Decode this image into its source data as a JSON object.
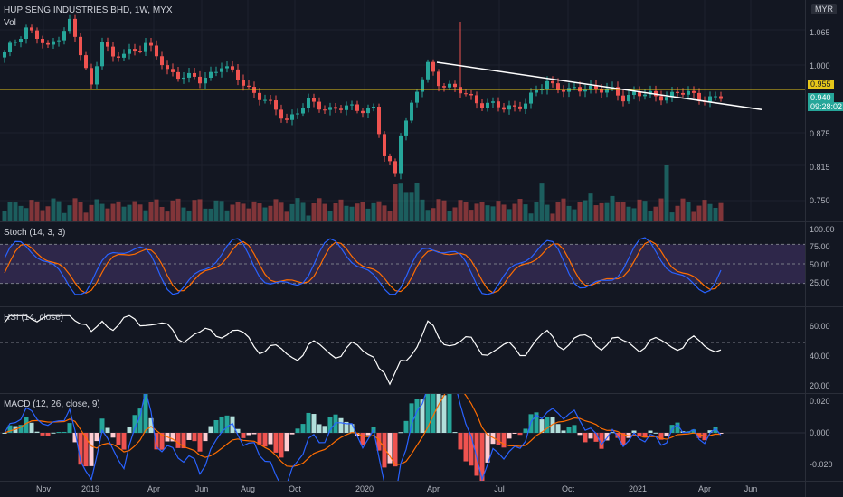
{
  "header": {
    "symbol_line": "HUP SENG INDUSTRIES BHD, 1W, MYX",
    "volume_label": "Vol",
    "currency": "MYR"
  },
  "price_scale": [
    "1.065",
    "1.000",
    "0.875",
    "0.815",
    "0.750"
  ],
  "price_tags": {
    "level": "0.955",
    "last": "0.940",
    "countdown": "09:28:02"
  },
  "stoch_pane": {
    "title": "Stoch (14, 3, 3)",
    "scale": [
      "100.00",
      "75.00",
      "50.00",
      "25.00"
    ]
  },
  "rsi_pane": {
    "title": "RSI (14, close)",
    "scale": [
      "60.00",
      "40.00",
      "20.00"
    ]
  },
  "macd_pane": {
    "title": "MACD (12, 26, close, 9)",
    "scale": [
      "0.020",
      "0.000",
      "-0.020"
    ]
  },
  "time_axis": [
    "Nov",
    "2019",
    "Apr",
    "Jun",
    "Aug",
    "Oct",
    "2020",
    "Apr",
    "Jul",
    "Oct",
    "2021",
    "Apr",
    "Jun"
  ],
  "colors": {
    "background": "#131722",
    "up": "#26a69a",
    "down": "#ef5350",
    "level_line": "#e6c619",
    "trendline": "#ffffff",
    "stoch_k": "#2962ff",
    "stoch_d": "#ff6d00",
    "stoch_band": "#7e57c2",
    "rsi_line": "#ffffff",
    "macd_line": "#2962ff",
    "signal_line": "#ff6d00"
  },
  "chart_data": {
    "type": "candlestick",
    "title": "HUP SENG INDUSTRIES BHD, 1W, MYX",
    "currency": "MYR",
    "x_range": [
      "2018-10",
      "2021-06"
    ],
    "ylim": [
      0.72,
      1.12
    ],
    "horizontal_level": 0.955,
    "last_price": 0.94,
    "close_series": {
      "weeks": [
        0,
        4,
        8,
        12,
        16,
        18,
        20,
        26,
        30,
        36,
        40,
        46,
        52,
        56,
        60,
        64,
        68,
        70,
        72,
        73,
        74,
        76,
        78,
        80,
        84,
        88,
        92,
        96,
        100,
        104,
        108,
        112,
        114,
        116,
        120,
        124,
        128,
        132
      ],
      "close": [
        1.02,
        1.07,
        1.03,
        1.08,
        0.96,
        1.05,
        1.01,
        1.04,
        0.99,
        0.97,
        1.0,
        0.95,
        0.9,
        0.93,
        0.92,
        0.92,
        0.92,
        0.83,
        0.8,
        0.88,
        0.9,
        0.95,
        1.0,
        0.97,
        0.95,
        0.93,
        0.92,
        0.93,
        0.97,
        0.95,
        0.96,
        0.95,
        0.94,
        0.95,
        0.94,
        0.95,
        0.94,
        0.94
      ]
    },
    "stoch": {
      "bands": [
        20,
        80
      ]
    },
    "rsi": {
      "midline": 50
    },
    "macd": {
      "zero_line": 0
    }
  }
}
